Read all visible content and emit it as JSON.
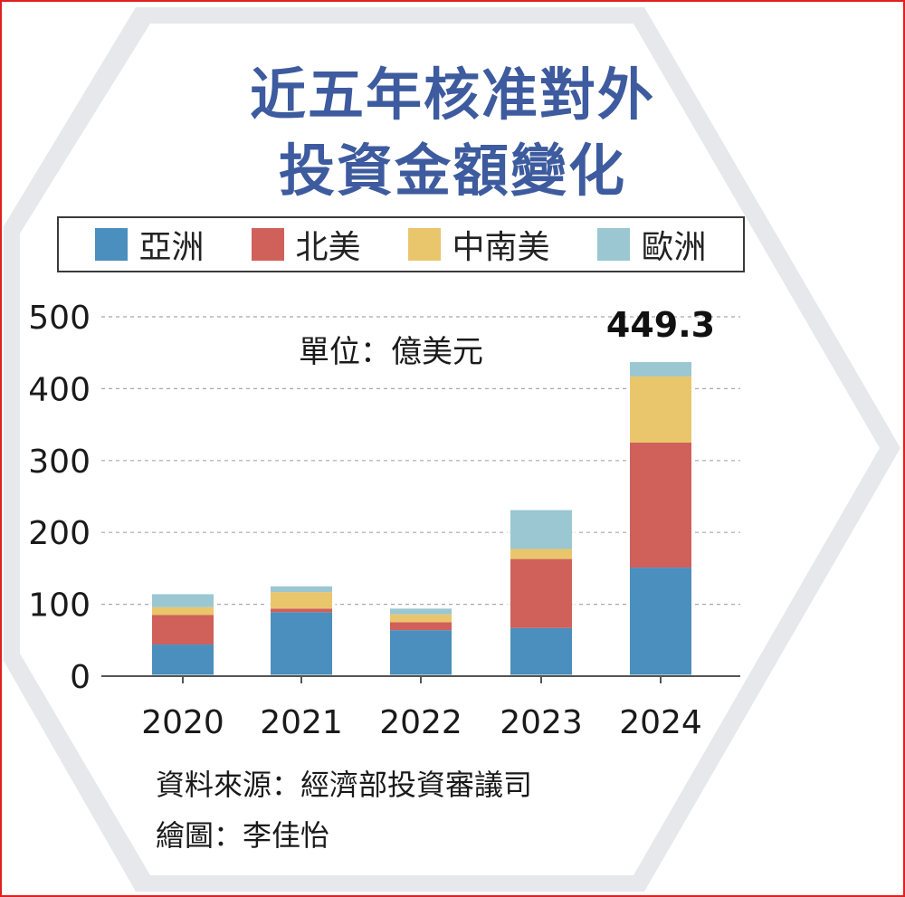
{
  "title_lines": [
    "近五年核准對外",
    "投資金額變化"
  ],
  "unit_label": "單位：億美元",
  "source": "資料來源：經濟部投資審議司",
  "credit": "繪圖：李佳怡",
  "colors": {
    "asia": "#4a8fbd",
    "north_america": "#d0605a",
    "latin_america": "#e9c66c",
    "europe": "#9ac7d1",
    "title": "#3d5b9e",
    "hexagon": "#e6e8ec"
  },
  "chart_data": {
    "type": "bar",
    "stacked": true,
    "categories": [
      "2020",
      "2021",
      "2022",
      "2023",
      "2024"
    ],
    "series": [
      {
        "name": "亞洲",
        "color": "#4a8fbd",
        "values": [
          44,
          89,
          64,
          67,
          151
        ]
      },
      {
        "name": "北美",
        "color": "#d0605a",
        "values": [
          41,
          5,
          11,
          96,
          174
        ]
      },
      {
        "name": "中南美",
        "color": "#e9c66c",
        "values": [
          11,
          23,
          11,
          14,
          92
        ]
      },
      {
        "name": "歐洲",
        "color": "#9ac7d1",
        "values": [
          18,
          8,
          8,
          54,
          20
        ]
      }
    ],
    "annotation": {
      "category": "2024",
      "text": "449.3"
    },
    "ylim": [
      0,
      500
    ],
    "yticks": [
      0,
      100,
      200,
      300,
      400,
      500
    ],
    "grid": true,
    "legend_position": "top"
  }
}
